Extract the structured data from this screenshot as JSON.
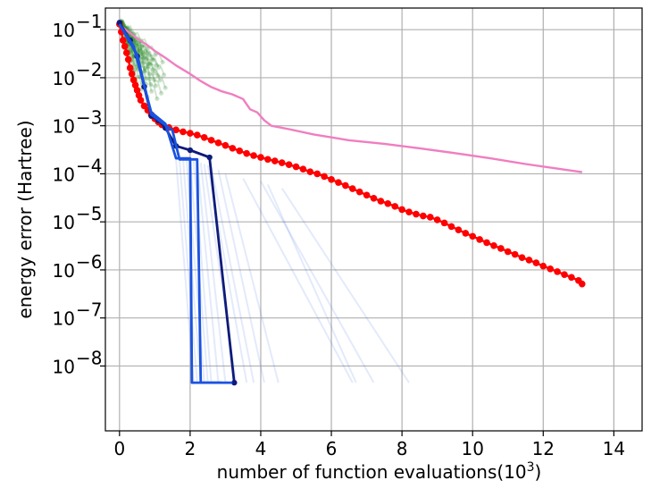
{
  "chart_data": {
    "type": "line",
    "title": "",
    "xlabel": "number of function evaluations(10",
    "xlabel_sup": "3",
    "xlabel_close": ")",
    "ylabel": "energy error (Hartree)",
    "xlim": [
      -0.4,
      14.8
    ],
    "ylim_log10": [
      -9.35,
      -0.55
    ],
    "y_scale": "log",
    "grid": true,
    "x_ticks": [
      0,
      2,
      4,
      6,
      8,
      10,
      12,
      14
    ],
    "x_tick_labels": [
      "0",
      "2",
      "4",
      "6",
      "8",
      "10",
      "12",
      "14"
    ],
    "y_ticks_exponent": [
      -1,
      -2,
      -3,
      -4,
      -5,
      -6,
      -7,
      -8
    ],
    "y_tick_base": "10",
    "y_tick_exponent_labels": [
      "−1",
      "−2",
      "−3",
      "−4",
      "−5",
      "−6",
      "−7",
      "−8"
    ],
    "series": [
      {
        "color": "#f07ec0",
        "style": "line",
        "points": [
          [
            0,
            0.13
          ],
          [
            0.1,
            0.11
          ],
          [
            0.3,
            0.085
          ],
          [
            0.5,
            0.065
          ],
          [
            0.8,
            0.047
          ],
          [
            1.0,
            0.036
          ],
          [
            1.3,
            0.026
          ],
          [
            1.6,
            0.018
          ],
          [
            2.0,
            0.012
          ],
          [
            2.3,
            0.0085
          ],
          [
            2.6,
            0.0064
          ],
          [
            2.9,
            0.0052
          ],
          [
            3.2,
            0.0045
          ],
          [
            3.5,
            0.0036
          ],
          [
            3.6,
            0.0028
          ],
          [
            3.7,
            0.0022
          ],
          [
            3.9,
            0.0019
          ],
          [
            4.1,
            0.0013
          ],
          [
            4.3,
            0.001
          ],
          [
            4.8,
            0.00085
          ],
          [
            5.5,
            0.00066
          ],
          [
            6.5,
            0.0005
          ],
          [
            7.5,
            0.00042
          ],
          [
            8.5,
            0.00034
          ],
          [
            9.5,
            0.00027
          ],
          [
            10.5,
            0.00021
          ],
          [
            11.5,
            0.00016
          ],
          [
            12.5,
            0.000125
          ],
          [
            13.1,
            0.000108
          ]
        ]
      },
      {
        "color": "#ff0000",
        "style": "line-markers",
        "points": [
          [
            0,
            0.13
          ],
          [
            0.05,
            0.09
          ],
          [
            0.1,
            0.06
          ],
          [
            0.15,
            0.045
          ],
          [
            0.2,
            0.033
          ],
          [
            0.25,
            0.024
          ],
          [
            0.3,
            0.016
          ],
          [
            0.35,
            0.012
          ],
          [
            0.4,
            0.009
          ],
          [
            0.45,
            0.007
          ],
          [
            0.5,
            0.0055
          ],
          [
            0.55,
            0.0043
          ],
          [
            0.6,
            0.0034
          ],
          [
            0.7,
            0.0026
          ],
          [
            0.8,
            0.0021
          ],
          [
            0.9,
            0.0017
          ],
          [
            1.0,
            0.0014
          ],
          [
            1.1,
            0.0012
          ],
          [
            1.2,
            0.00105
          ],
          [
            1.4,
            0.00092
          ],
          [
            1.6,
            0.00082
          ],
          [
            1.8,
            0.00075
          ],
          [
            2.0,
            0.0007
          ],
          [
            2.2,
            0.00064
          ],
          [
            2.4,
            0.00057
          ],
          [
            2.6,
            0.0005
          ],
          [
            2.8,
            0.00044
          ],
          [
            3.0,
            0.00039
          ],
          [
            3.2,
            0.00034
          ],
          [
            3.4,
            0.0003
          ],
          [
            3.6,
            0.000265
          ],
          [
            3.8,
            0.00024
          ],
          [
            4.0,
            0.00022
          ],
          [
            4.2,
            0.0002
          ],
          [
            4.4,
            0.000185
          ],
          [
            4.6,
            0.00017
          ],
          [
            4.8,
            0.000155
          ],
          [
            5.0,
            0.00014
          ],
          [
            5.2,
            0.000125
          ],
          [
            5.4,
            0.00011
          ],
          [
            5.6,
            0.0001
          ],
          [
            5.8,
            8.8e-05
          ],
          [
            6.0,
            7.6e-05
          ],
          [
            6.2,
            6.6e-05
          ],
          [
            6.4,
            5.7e-05
          ],
          [
            6.6,
            4.9e-05
          ],
          [
            6.8,
            4.2e-05
          ],
          [
            7.0,
            3.6e-05
          ],
          [
            7.2,
            3.1e-05
          ],
          [
            7.4,
            2.7e-05
          ],
          [
            7.6,
            2.4e-05
          ],
          [
            7.8,
            2.1e-05
          ],
          [
            8.0,
            1.8e-05
          ],
          [
            8.2,
            1.6e-05
          ],
          [
            8.4,
            1.45e-05
          ],
          [
            8.6,
            1.33e-05
          ],
          [
            8.8,
            1.25e-05
          ],
          [
            9.0,
            1.1e-05
          ],
          [
            9.2,
            9.5e-06
          ],
          [
            9.4,
            8e-06
          ],
          [
            9.6,
            6.8e-06
          ],
          [
            9.8,
            5.8e-06
          ],
          [
            10.0,
            5e-06
          ],
          [
            10.2,
            4.3e-06
          ],
          [
            10.4,
            3.7e-06
          ],
          [
            10.6,
            3.2e-06
          ],
          [
            10.8,
            2.8e-06
          ],
          [
            11.0,
            2.4e-06
          ],
          [
            11.2,
            2.1e-06
          ],
          [
            11.4,
            1.8e-06
          ],
          [
            11.6,
            1.6e-06
          ],
          [
            11.8,
            1.4e-06
          ],
          [
            12.0,
            1.2e-06
          ],
          [
            12.2,
            1.05e-06
          ],
          [
            12.4,
            9.2e-07
          ],
          [
            12.6,
            8e-07
          ],
          [
            12.8,
            7e-07
          ],
          [
            13.0,
            6e-07
          ],
          [
            13.1,
            5.1e-07
          ]
        ]
      },
      {
        "color": "#0d1b7a",
        "style": "line-markers",
        "points": [
          [
            0,
            0.14
          ],
          [
            0.3,
            0.06
          ],
          [
            0.5,
            0.028
          ],
          [
            0.7,
            0.0065
          ],
          [
            0.9,
            0.0016
          ],
          [
            1.1,
            0.0013
          ],
          [
            1.3,
            0.0009
          ],
          [
            1.6,
            0.00038
          ],
          [
            2.0,
            0.00031
          ],
          [
            2.55,
            0.00022
          ],
          [
            3.25,
            4.5e-09
          ]
        ]
      },
      {
        "color": "#1a52e0",
        "style": "line",
        "points": [
          [
            0,
            0.13
          ],
          [
            0.4,
            0.045
          ],
          [
            0.9,
            0.0019
          ],
          [
            1.3,
            0.0011
          ],
          [
            1.6,
            0.00021
          ],
          [
            2.0,
            0.00021
          ],
          [
            2.05,
            4.5e-09
          ],
          [
            3.2,
            4.5e-09
          ]
        ]
      },
      {
        "color": "#1a52e0",
        "style": "line",
        "points": [
          [
            0,
            0.13
          ],
          [
            0.5,
            0.03
          ],
          [
            0.9,
            0.0017
          ],
          [
            1.5,
            0.0008
          ],
          [
            1.7,
            0.0002
          ],
          [
            2.2,
            0.0002
          ],
          [
            2.3,
            4.5e-09
          ],
          [
            2.9,
            4.5e-09
          ]
        ]
      }
    ],
    "faint_blue_series": [
      [
        [
          1.6,
          0.0002
        ],
        [
          2.1,
          4.5e-09
        ]
      ],
      [
        [
          1.7,
          0.0002
        ],
        [
          2.2,
          4.5e-09
        ]
      ],
      [
        [
          1.8,
          0.0002
        ],
        [
          2.3,
          4.5e-09
        ]
      ],
      [
        [
          1.9,
          0.0002
        ],
        [
          2.4,
          4.5e-09
        ]
      ],
      [
        [
          2.0,
          0.0002
        ],
        [
          2.5,
          4.5e-09
        ]
      ],
      [
        [
          2.1,
          0.00019
        ],
        [
          2.6,
          4.5e-09
        ]
      ],
      [
        [
          2.2,
          0.00018
        ],
        [
          2.8,
          4.5e-09
        ]
      ],
      [
        [
          2.3,
          0.00017
        ],
        [
          3.0,
          4.5e-09
        ]
      ],
      [
        [
          2.4,
          0.00016
        ],
        [
          3.3,
          4.5e-09
        ]
      ],
      [
        [
          2.5,
          0.00015
        ],
        [
          3.6,
          4.5e-09
        ]
      ],
      [
        [
          2.6,
          0.00014
        ],
        [
          3.8,
          4.5e-09
        ]
      ],
      [
        [
          2.8,
          0.00012
        ],
        [
          4.1,
          4.5e-09
        ]
      ],
      [
        [
          3.0,
          0.0001
        ],
        [
          4.5,
          4.5e-09
        ]
      ],
      [
        [
          3.5,
          8e-05
        ],
        [
          6.6,
          4.5e-09
        ]
      ],
      [
        [
          4.0,
          7e-05
        ],
        [
          7.2,
          4.5e-09
        ]
      ],
      [
        [
          4.2,
          6e-05
        ],
        [
          6.7,
          4.5e-09
        ]
      ],
      [
        [
          4.6,
          5e-05
        ],
        [
          8.2,
          4.5e-09
        ]
      ]
    ],
    "green_cluster": {
      "color": "#2e8b2e",
      "x_range": [
        0,
        1.3
      ],
      "y_start": 0.15,
      "y_end_range": [
        0.004,
        0.03
      ]
    }
  }
}
